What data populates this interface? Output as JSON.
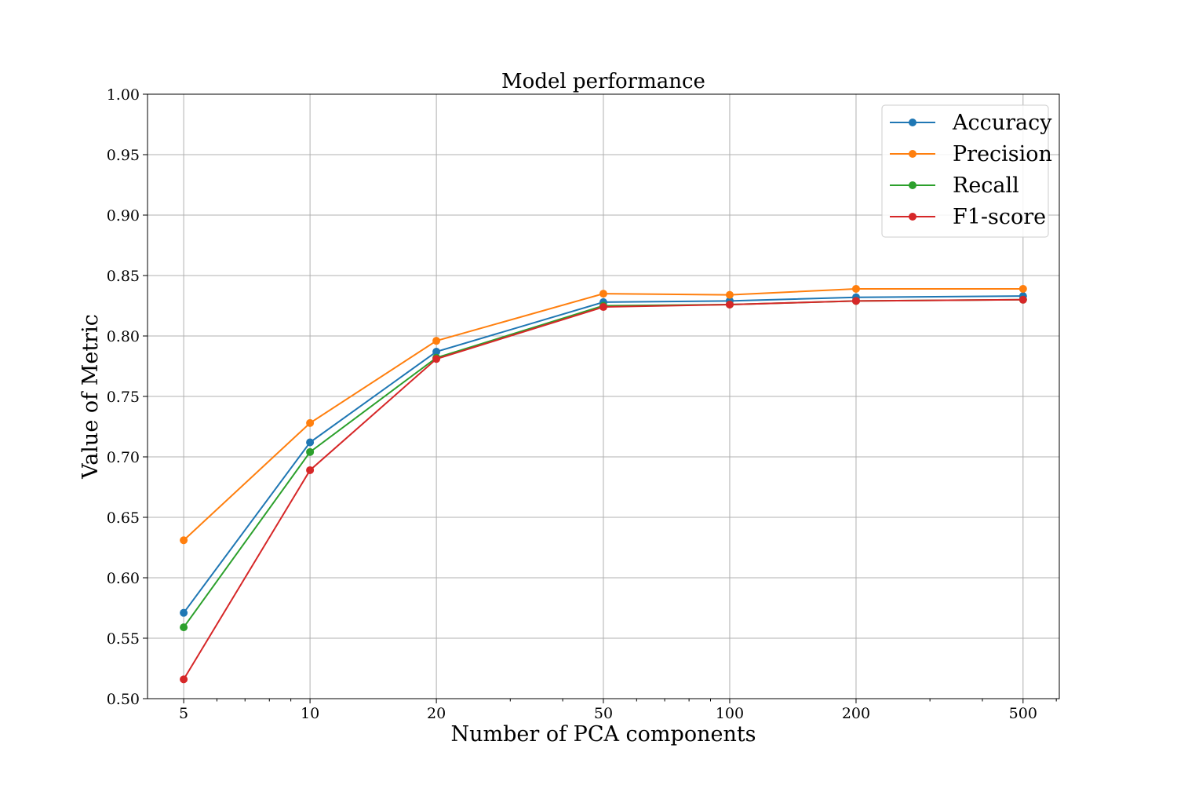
{
  "chart_data": {
    "type": "line",
    "title": "Model performance",
    "xlabel": "Number of PCA components",
    "ylabel": "Value of Metric",
    "x_scale": "log",
    "x": [
      5,
      10,
      20,
      50,
      100,
      200,
      500
    ],
    "x_tick_labels": [
      "5",
      "10",
      "20",
      "50",
      "100",
      "200",
      "500"
    ],
    "xlim": [
      4.1,
      610
    ],
    "ylim": [
      0.5,
      1.0
    ],
    "y_ticks": [
      0.5,
      0.55,
      0.6,
      0.65,
      0.7,
      0.75,
      0.8,
      0.85,
      0.9,
      0.95,
      1.0
    ],
    "y_tick_labels": [
      "0.50",
      "0.55",
      "0.60",
      "0.65",
      "0.70",
      "0.75",
      "0.80",
      "0.85",
      "0.90",
      "0.95",
      "1.00"
    ],
    "grid": true,
    "legend_position": "top-right",
    "series": [
      {
        "name": "Accuracy",
        "color": "#1f77b4",
        "values": [
          0.571,
          0.712,
          0.787,
          0.828,
          0.829,
          0.832,
          0.833
        ]
      },
      {
        "name": "Precision",
        "color": "#ff7f0e",
        "values": [
          0.631,
          0.728,
          0.796,
          0.835,
          0.834,
          0.839,
          0.839
        ]
      },
      {
        "name": "Recall",
        "color": "#2ca02c",
        "values": [
          0.559,
          0.704,
          0.782,
          0.825,
          0.826,
          0.829,
          0.83
        ]
      },
      {
        "name": "F1-score",
        "color": "#d62728",
        "values": [
          0.516,
          0.689,
          0.781,
          0.824,
          0.826,
          0.829,
          0.83
        ]
      }
    ]
  }
}
